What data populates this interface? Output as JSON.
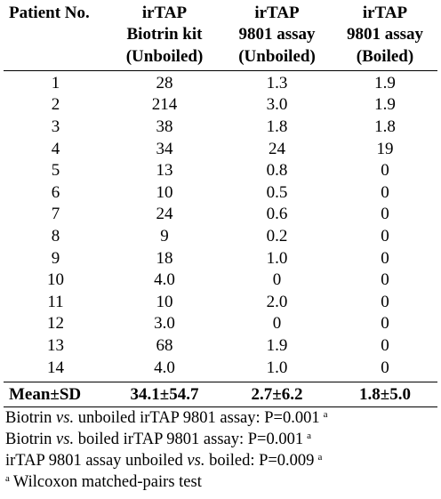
{
  "headers": [
    {
      "line1": "Patient No.",
      "line2": "",
      "line3": ""
    },
    {
      "line1": "irTAP",
      "line2": "Biotrin kit",
      "line3": "(Unboiled)"
    },
    {
      "line1": "irTAP",
      "line2": "9801 assay",
      "line3": "(Unboiled)"
    },
    {
      "line1": "irTAP",
      "line2": "9801 assay",
      "line3": "(Boiled)"
    }
  ],
  "rows": [
    [
      "1",
      "28",
      "1.3",
      "1.9"
    ],
    [
      "2",
      "214",
      "3.0",
      "1.9"
    ],
    [
      "3",
      "38",
      "1.8",
      "1.8"
    ],
    [
      "4",
      "34",
      "24",
      "19"
    ],
    [
      "5",
      "13",
      "0.8",
      "0"
    ],
    [
      "6",
      "10",
      "0.5",
      "0"
    ],
    [
      "7",
      "24",
      "0.6",
      "0"
    ],
    [
      "8",
      "9",
      "0.2",
      "0"
    ],
    [
      "9",
      "18",
      "1.0",
      "0"
    ],
    [
      "10",
      "4.0",
      "0",
      "0"
    ],
    [
      "11",
      "10",
      "2.0",
      "0"
    ],
    [
      "12",
      "3.0",
      "0",
      "0"
    ],
    [
      "13",
      "68",
      "1.9",
      "0"
    ],
    [
      "14",
      "4.0",
      "1.0",
      "0"
    ]
  ],
  "summary": [
    "Mean±SD",
    "34.1±54.7",
    "2.7±6.2",
    "1.8±5.0"
  ],
  "notes": [
    {
      "pre": "Biotrin ",
      "em": "vs.",
      "post": " unboiled irTAP 9801 assay: P=0.001",
      "sup": "a"
    },
    {
      "pre": "Biotrin ",
      "em": "vs.",
      "post": " boiled irTAP 9801 assay: P=0.001",
      "sup": "a"
    },
    {
      "pre": "irTAP 9801 assay unboiled ",
      "em": "vs.",
      "post": " boiled: P=0.009",
      "sup": "a"
    }
  ],
  "footnote": {
    "sup": "a",
    "text": "Wilcoxon matched-pairs test"
  }
}
